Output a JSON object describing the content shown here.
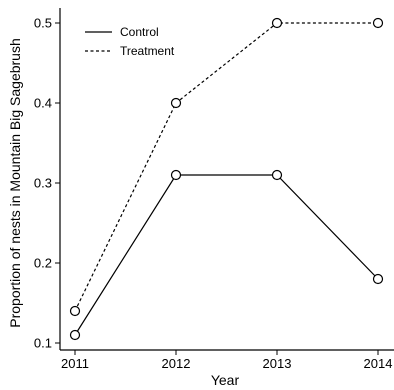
{
  "chart_data": {
    "type": "line",
    "title": "",
    "xlabel": "Year",
    "ylabel": "Proportion of nests in Mountain Big Sagebrush",
    "x": [
      2011,
      2012,
      2013,
      2014
    ],
    "xlim": [
      2011,
      2014
    ],
    "ylim": [
      0.1,
      0.5
    ],
    "x_ticks": [
      2011,
      2012,
      2013,
      2014
    ],
    "y_ticks": [
      0.1,
      0.2,
      0.3,
      0.4,
      0.5
    ],
    "grid": false,
    "legend_position": "top-left",
    "series": [
      {
        "name": "Control",
        "values": [
          0.11,
          0.31,
          0.31,
          0.18
        ],
        "line_style": "solid",
        "marker": "open-circle",
        "color": "#000000"
      },
      {
        "name": "Treatment",
        "values": [
          0.14,
          0.4,
          0.5,
          0.5
        ],
        "line_style": "dotted",
        "marker": "open-circle",
        "color": "#000000"
      }
    ]
  }
}
